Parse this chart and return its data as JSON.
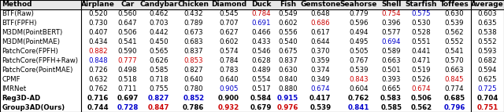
{
  "columns": [
    "Method",
    "Airplane",
    "Car",
    "Candybar",
    "Chicken",
    "Diamond",
    "Duck",
    "Fish",
    "Gemstone",
    "Seahorse",
    "Shell",
    "Starfish",
    "Toffees",
    "Average"
  ],
  "rows": [
    {
      "method": "BTF(Raw)",
      "values": [
        0.52,
        0.56,
        0.462,
        0.432,
        0.545,
        0.784,
        0.549,
        0.648,
        0.779,
        0.754,
        0.575,
        0.63,
        0.603
      ],
      "colors": [
        "k",
        "k",
        "k",
        "k",
        "k",
        "red",
        "k",
        "k",
        "k",
        "red",
        "blue",
        "k",
        "k"
      ]
    },
    {
      "method": "BTF(FPFH)",
      "values": [
        0.73,
        0.647,
        0.703,
        0.789,
        0.707,
        0.691,
        0.602,
        0.686,
        0.596,
        0.396,
        0.53,
        0.539,
        0.635
      ],
      "colors": [
        "k",
        "k",
        "k",
        "k",
        "k",
        "blue",
        "k",
        "red",
        "k",
        "k",
        "k",
        "k",
        "k"
      ]
    },
    {
      "method": "M3DM(PointBERT)",
      "values": [
        0.407,
        0.506,
        0.442,
        0.673,
        0.627,
        0.466,
        0.556,
        0.617,
        0.494,
        0.577,
        0.528,
        0.562,
        0.538
      ],
      "colors": [
        "k",
        "k",
        "k",
        "k",
        "k",
        "k",
        "k",
        "k",
        "k",
        "k",
        "k",
        "k",
        "k"
      ]
    },
    {
      "method": "M3DM(PointMAE)",
      "values": [
        0.434,
        0.541,
        0.45,
        0.683,
        0.602,
        0.433,
        0.54,
        0.644,
        0.495,
        0.694,
        0.551,
        0.552,
        0.552
      ],
      "colors": [
        "k",
        "k",
        "k",
        "k",
        "k",
        "k",
        "k",
        "k",
        "k",
        "blue",
        "k",
        "k",
        "k"
      ]
    },
    {
      "method": "PatchCore(FPFH)",
      "values": [
        0.882,
        0.59,
        0.565,
        0.837,
        0.574,
        0.546,
        0.675,
        0.37,
        0.505,
        0.589,
        0.441,
        0.541,
        0.593
      ],
      "colors": [
        "red",
        "k",
        "k",
        "k",
        "k",
        "k",
        "k",
        "k",
        "k",
        "k",
        "k",
        "k",
        "k"
      ]
    },
    {
      "method": "PatchCore(FPFH+Raw)",
      "values": [
        0.848,
        0.777,
        0.626,
        0.853,
        0.784,
        0.628,
        0.837,
        0.359,
        0.767,
        0.663,
        0.471,
        0.57,
        0.682
      ],
      "colors": [
        "blue",
        "red",
        "k",
        "red",
        "k",
        "k",
        "k",
        "k",
        "k",
        "k",
        "k",
        "k",
        "k"
      ]
    },
    {
      "method": "PatchCore(PointMAE)",
      "values": [
        0.726,
        0.498,
        0.585,
        0.827,
        0.783,
        0.489,
        0.63,
        0.374,
        0.539,
        0.501,
        0.519,
        0.663,
        0.594
      ],
      "colors": [
        "k",
        "k",
        "k",
        "k",
        "k",
        "k",
        "k",
        "k",
        "k",
        "k",
        "k",
        "k",
        "k"
      ]
    },
    {
      "method": "CPMF",
      "values": [
        0.632,
        0.518,
        0.718,
        0.64,
        0.64,
        0.554,
        0.84,
        0.349,
        0.843,
        0.393,
        0.526,
        0.845,
        0.625
      ],
      "colors": [
        "k",
        "k",
        "k",
        "k",
        "k",
        "k",
        "k",
        "k",
        "red",
        "k",
        "k",
        "red",
        "k"
      ]
    },
    {
      "method": "IMRNet",
      "values": [
        0.762,
        0.711,
        0.755,
        0.78,
        0.905,
        0.517,
        0.88,
        0.674,
        0.604,
        0.665,
        0.674,
        0.774,
        0.725
      ],
      "colors": [
        "k",
        "k",
        "k",
        "k",
        "blue",
        "k",
        "k",
        "blue",
        "k",
        "k",
        "red",
        "k",
        "blue"
      ]
    },
    {
      "method": "Reg3D-AD",
      "values": [
        0.716,
        0.697,
        0.827,
        0.852,
        0.9,
        0.584,
        0.915,
        0.417,
        0.762,
        0.583,
        0.506,
        0.685,
        0.704
      ],
      "colors": [
        "k",
        "k",
        "blue",
        "blue",
        "k",
        "k",
        "blue",
        "k",
        "k",
        "k",
        "k",
        "k",
        "k"
      ]
    },
    {
      "method": "Group3AD(Ours)",
      "values": [
        0.744,
        0.728,
        0.847,
        0.786,
        0.932,
        0.679,
        0.976,
        0.539,
        0.841,
        0.585,
        0.562,
        0.796,
        0.751
      ],
      "colors": [
        "k",
        "blue",
        "red",
        "k",
        "red",
        "k",
        "red",
        "k",
        "blue",
        "k",
        "k",
        "blue",
        "red"
      ]
    }
  ],
  "bold_methods": [
    "Reg3D-AD",
    "Group3AD(Ours)"
  ],
  "col_widths": [
    1.72,
    0.7,
    0.55,
    0.77,
    0.7,
    0.78,
    0.59,
    0.55,
    0.82,
    0.8,
    0.57,
    0.7,
    0.7,
    0.7
  ],
  "figsize": [
    6.4,
    1.43
  ],
  "dpi": 100,
  "fontsize": 6.2,
  "header_fontsize": 6.5,
  "color_map": {
    "k": "#000000",
    "red": "#cc0000",
    "blue": "#0000cc"
  }
}
